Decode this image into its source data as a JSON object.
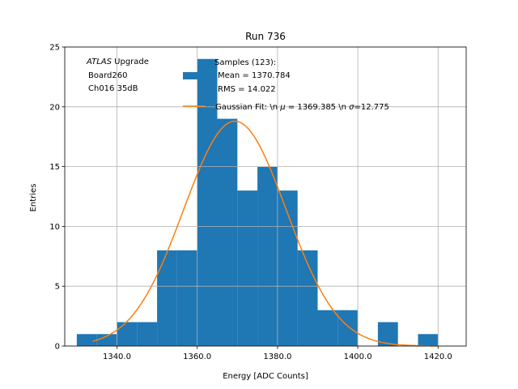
{
  "chart_data": {
    "type": "bar",
    "title": "Run 736",
    "xlabel": "Energy [ADC Counts]",
    "ylabel": "Entries",
    "xlim": [
      1327,
      1427
    ],
    "ylim": [
      0,
      25
    ],
    "x_ticks": [
      "1340.0",
      "1360.0",
      "1380.0",
      "1400.0",
      "1420.0"
    ],
    "x_tick_values": [
      1340,
      1360,
      1380,
      1400,
      1420
    ],
    "y_ticks": [
      "0",
      "5",
      "10",
      "15",
      "20",
      "25"
    ],
    "y_tick_values": [
      0,
      5,
      10,
      15,
      20,
      25
    ],
    "grid": true,
    "bar_color": "#1f77b4",
    "fit_color": "#ff7f0e",
    "bins": {
      "edges": [
        1330,
        1335,
        1340,
        1345,
        1350,
        1355,
        1360,
        1365,
        1370,
        1375,
        1380,
        1385,
        1390,
        1395,
        1400,
        1405,
        1410,
        1415,
        1420,
        1425
      ],
      "counts": [
        1,
        1,
        2,
        2,
        8,
        8,
        24,
        19,
        13,
        15,
        13,
        8,
        3,
        3,
        0,
        2,
        0,
        1,
        0
      ]
    },
    "fit": {
      "mu": 1369.385,
      "sigma": 12.775,
      "amplitude": 18.8,
      "x_range": [
        1334,
        1420
      ]
    },
    "annotation": {
      "atlas": "ATLAS",
      "upgrade": "Upgrade",
      "line2": "Board260",
      "line3": "Ch016 35dB"
    },
    "legend": {
      "position": "top-right",
      "samples_line1": "Samples (123):",
      "samples_line2": "Mean = 1370.784",
      "samples_line3": "RMS = 14.022",
      "fit_prefix": "Gaussian Fit: \\n ",
      "fit_mu_symbol": "μ",
      "fit_mu_value": " = 1369.385 \\n ",
      "fit_sigma_symbol": "σ",
      "fit_sigma_value": "=12.775"
    }
  }
}
